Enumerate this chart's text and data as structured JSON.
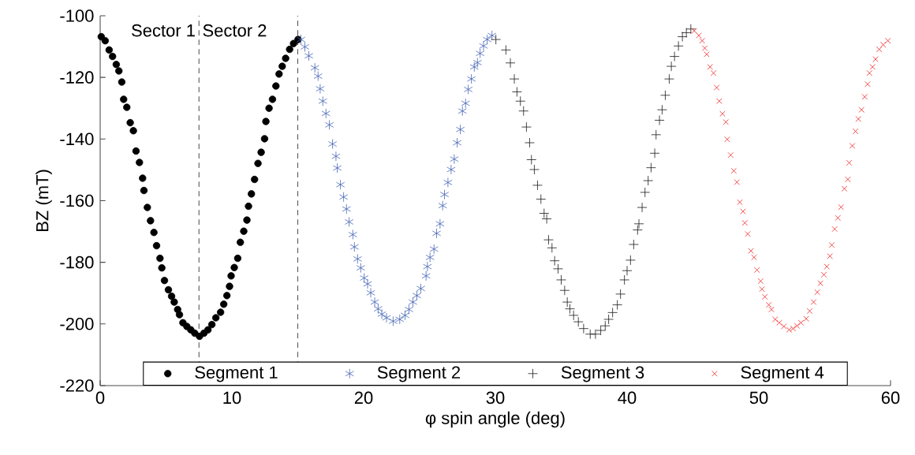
{
  "chart_data": {
    "type": "scatter",
    "xlabel": "φ spin angle (deg)",
    "ylabel": "BZ (mT)",
    "xlim": [
      0,
      60
    ],
    "ylim": [
      -220,
      -100
    ],
    "xticks": [
      0,
      10,
      20,
      30,
      40,
      50,
      60
    ],
    "yticks": [
      -220,
      -200,
      -180,
      -160,
      -140,
      -120,
      -100
    ],
    "grid": false,
    "legend": "bottom",
    "ref_lines": [
      {
        "axis": "x",
        "value": 7.5,
        "color": "#555555",
        "line_style": "dashed"
      },
      {
        "axis": "x",
        "value": 15,
        "color": "#555555",
        "line_style": "dashed"
      }
    ],
    "annotations": [
      "Sector 1",
      "Sector 2"
    ],
    "series": [
      {
        "name": "Segment 1",
        "color": "#000000",
        "marker": "circle",
        "x": [
          0.08,
          0.38,
          0.68,
          0.94,
          1.22,
          1.42,
          1.64,
          1.78,
          2.02,
          2.28,
          2.52,
          2.72,
          2.98,
          3.22,
          3.32,
          3.58,
          3.82,
          4.08,
          4.28,
          4.54,
          4.68,
          4.88,
          5.18,
          5.42,
          5.62,
          5.88,
          6.02,
          6.28,
          6.58,
          6.88,
          7.18,
          7.54,
          7.88,
          8.18,
          8.48,
          8.78,
          9.14,
          9.38,
          9.62,
          9.82,
          9.94,
          10.18,
          10.44,
          10.64,
          10.9,
          11.14,
          11.26,
          11.48,
          11.72,
          11.98,
          12.22,
          12.48,
          12.58,
          12.82,
          13.08,
          13.34,
          13.58,
          13.82,
          14.08,
          14.38,
          14.68,
          15.02
        ],
        "values": [
          -106.8,
          -108.1,
          -111.1,
          -113.2,
          -115.8,
          -117.9,
          -121.5,
          -127.1,
          -129.7,
          -134.7,
          -137.3,
          -143.9,
          -147.6,
          -152.7,
          -156.7,
          -162.2,
          -166.5,
          -170.3,
          -174.6,
          -178.7,
          -181.8,
          -185.9,
          -188.9,
          -191.0,
          -192.9,
          -195.3,
          -197.0,
          -199.6,
          -200.8,
          -201.9,
          -203.0,
          -204.0,
          -203.0,
          -201.9,
          -200.2,
          -198.0,
          -196.2,
          -193.6,
          -190.8,
          -187.8,
          -184.4,
          -181.7,
          -178.7,
          -173.5,
          -169.9,
          -166.3,
          -161.8,
          -157.8,
          -153.1,
          -147.9,
          -144.3,
          -139.9,
          -134.3,
          -130.0,
          -127.1,
          -122.8,
          -118.9,
          -116.4,
          -113.8,
          -110.9,
          -109.0,
          -107.7
        ]
      },
      {
        "name": "Segment 2",
        "color": "#4565b5",
        "x": [
          15.24,
          15.54,
          15.84,
          16.3,
          16.54,
          16.7,
          16.9,
          17.14,
          17.4,
          17.64,
          17.9,
          18.0,
          18.24,
          18.48,
          18.7,
          18.9,
          19.18,
          19.3,
          19.54,
          19.78,
          20.04,
          20.3,
          20.54,
          20.84,
          21.1,
          21.38,
          21.74,
          22.24,
          22.74,
          23.14,
          23.44,
          23.74,
          24.04,
          24.34,
          24.74,
          24.84,
          25.04,
          25.34,
          25.54,
          25.8,
          26.0,
          26.14,
          26.4,
          26.64,
          26.88,
          27.1,
          27.34,
          27.5,
          27.74,
          27.94,
          28.18,
          28.4,
          28.64,
          28.84,
          29.1,
          29.38,
          29.74
        ],
        "values": [
          -107.7,
          -110.1,
          -113.0,
          -116.9,
          -119.6,
          -123.7,
          -127.7,
          -131.7,
          -135.4,
          -141.6,
          -145.6,
          -149.4,
          -154.8,
          -158.8,
          -162.7,
          -166.9,
          -171.0,
          -175.0,
          -178.9,
          -181.8,
          -185.1,
          -187.0,
          -189.9,
          -192.9,
          -195.1,
          -196.8,
          -198.0,
          -199.1,
          -198.5,
          -197.2,
          -195.3,
          -192.9,
          -190.8,
          -188.5,
          -184.4,
          -181.4,
          -178.4,
          -175.7,
          -170.6,
          -167.5,
          -161.6,
          -158.0,
          -154.1,
          -149.9,
          -146.5,
          -141.2,
          -136.9,
          -130.9,
          -128.4,
          -123.9,
          -120.5,
          -116.6,
          -115.2,
          -112.2,
          -109.8,
          -107.7,
          -106.4
        ]
      },
      {
        "name": "Segment 3",
        "color": "#1a1a1a",
        "marker": "plus",
        "x": [
          30.04,
          30.8,
          31.14,
          31.44,
          31.64,
          31.9,
          32.14,
          32.36,
          32.6,
          32.74,
          32.96,
          33.2,
          33.46,
          33.7,
          33.9,
          34.04,
          34.3,
          34.5,
          34.76,
          35.0,
          35.26,
          35.46,
          35.66,
          35.94,
          36.3,
          36.7,
          37.2,
          37.6,
          38.0,
          38.34,
          38.6,
          38.9,
          39.26,
          39.5,
          39.8,
          40.0,
          40.26,
          40.5,
          40.8,
          40.9,
          41.14,
          41.36,
          41.6,
          41.82,
          42.1,
          42.2,
          42.46,
          42.66,
          42.9,
          43.2,
          43.36,
          43.6,
          43.9,
          44.2,
          44.5,
          44.84
        ],
        "values": [
          -107.7,
          -111.1,
          -115.3,
          -120.5,
          -124.7,
          -127.7,
          -130.9,
          -136.1,
          -141.2,
          -146.7,
          -149.9,
          -155.0,
          -159.5,
          -164.1,
          -165.9,
          -172.7,
          -175.3,
          -179.5,
          -182.1,
          -185.7,
          -189.1,
          -192.9,
          -195.1,
          -197.2,
          -199.3,
          -201.5,
          -203.3,
          -203.3,
          -202.1,
          -200.6,
          -198.5,
          -196.3,
          -193.8,
          -190.3,
          -185.7,
          -182.7,
          -179.3,
          -174.2,
          -169.5,
          -167.5,
          -162.2,
          -157.3,
          -153.5,
          -149.3,
          -144.6,
          -138.6,
          -133.9,
          -130.5,
          -125.8,
          -120.5,
          -116.4,
          -113.2,
          -109.8,
          -106.8,
          -105.5,
          -104.3
        ]
      },
      {
        "name": "Segment 4",
        "color": "#ee2222",
        "marker": "cross",
        "x": [
          45.1,
          45.44,
          45.7,
          45.9,
          46.04,
          46.3,
          46.56,
          46.8,
          47.0,
          47.24,
          47.5,
          47.6,
          47.86,
          48.1,
          48.34,
          48.56,
          48.8,
          48.94,
          49.16,
          49.4,
          49.64,
          49.86,
          50.14,
          50.24,
          50.46,
          50.76,
          50.96,
          51.24,
          51.56,
          51.9,
          52.3,
          52.6,
          52.9,
          53.2,
          53.6,
          53.86,
          54.16,
          54.44,
          54.68,
          54.94,
          55.16,
          55.4,
          55.54,
          55.76,
          56.0,
          56.24,
          56.5,
          56.76,
          56.86,
          57.1,
          57.34,
          57.56,
          57.8,
          58.04,
          58.26,
          58.4,
          58.64,
          58.86,
          59.14,
          59.44,
          59.8
        ],
        "values": [
          -104.9,
          -106.4,
          -108.1,
          -110.5,
          -112.5,
          -116.6,
          -118.6,
          -123.3,
          -127.7,
          -131.8,
          -134.5,
          -140.1,
          -145.2,
          -150.3,
          -154.0,
          -160.5,
          -163.5,
          -167.2,
          -170.8,
          -176.3,
          -178.4,
          -182.5,
          -186.1,
          -188.7,
          -191.2,
          -193.8,
          -195.3,
          -198.5,
          -199.6,
          -200.8,
          -201.9,
          -201.5,
          -200.6,
          -199.6,
          -198.3,
          -195.8,
          -192.9,
          -189.7,
          -186.8,
          -184.0,
          -181.4,
          -178.0,
          -174.4,
          -169.2,
          -165.6,
          -162.1,
          -156.1,
          -153.1,
          -147.7,
          -142.2,
          -137.5,
          -133.5,
          -130.5,
          -126.3,
          -122.2,
          -118.6,
          -116.6,
          -114.1,
          -110.9,
          -109.4,
          -108.1
        ]
      }
    ]
  }
}
